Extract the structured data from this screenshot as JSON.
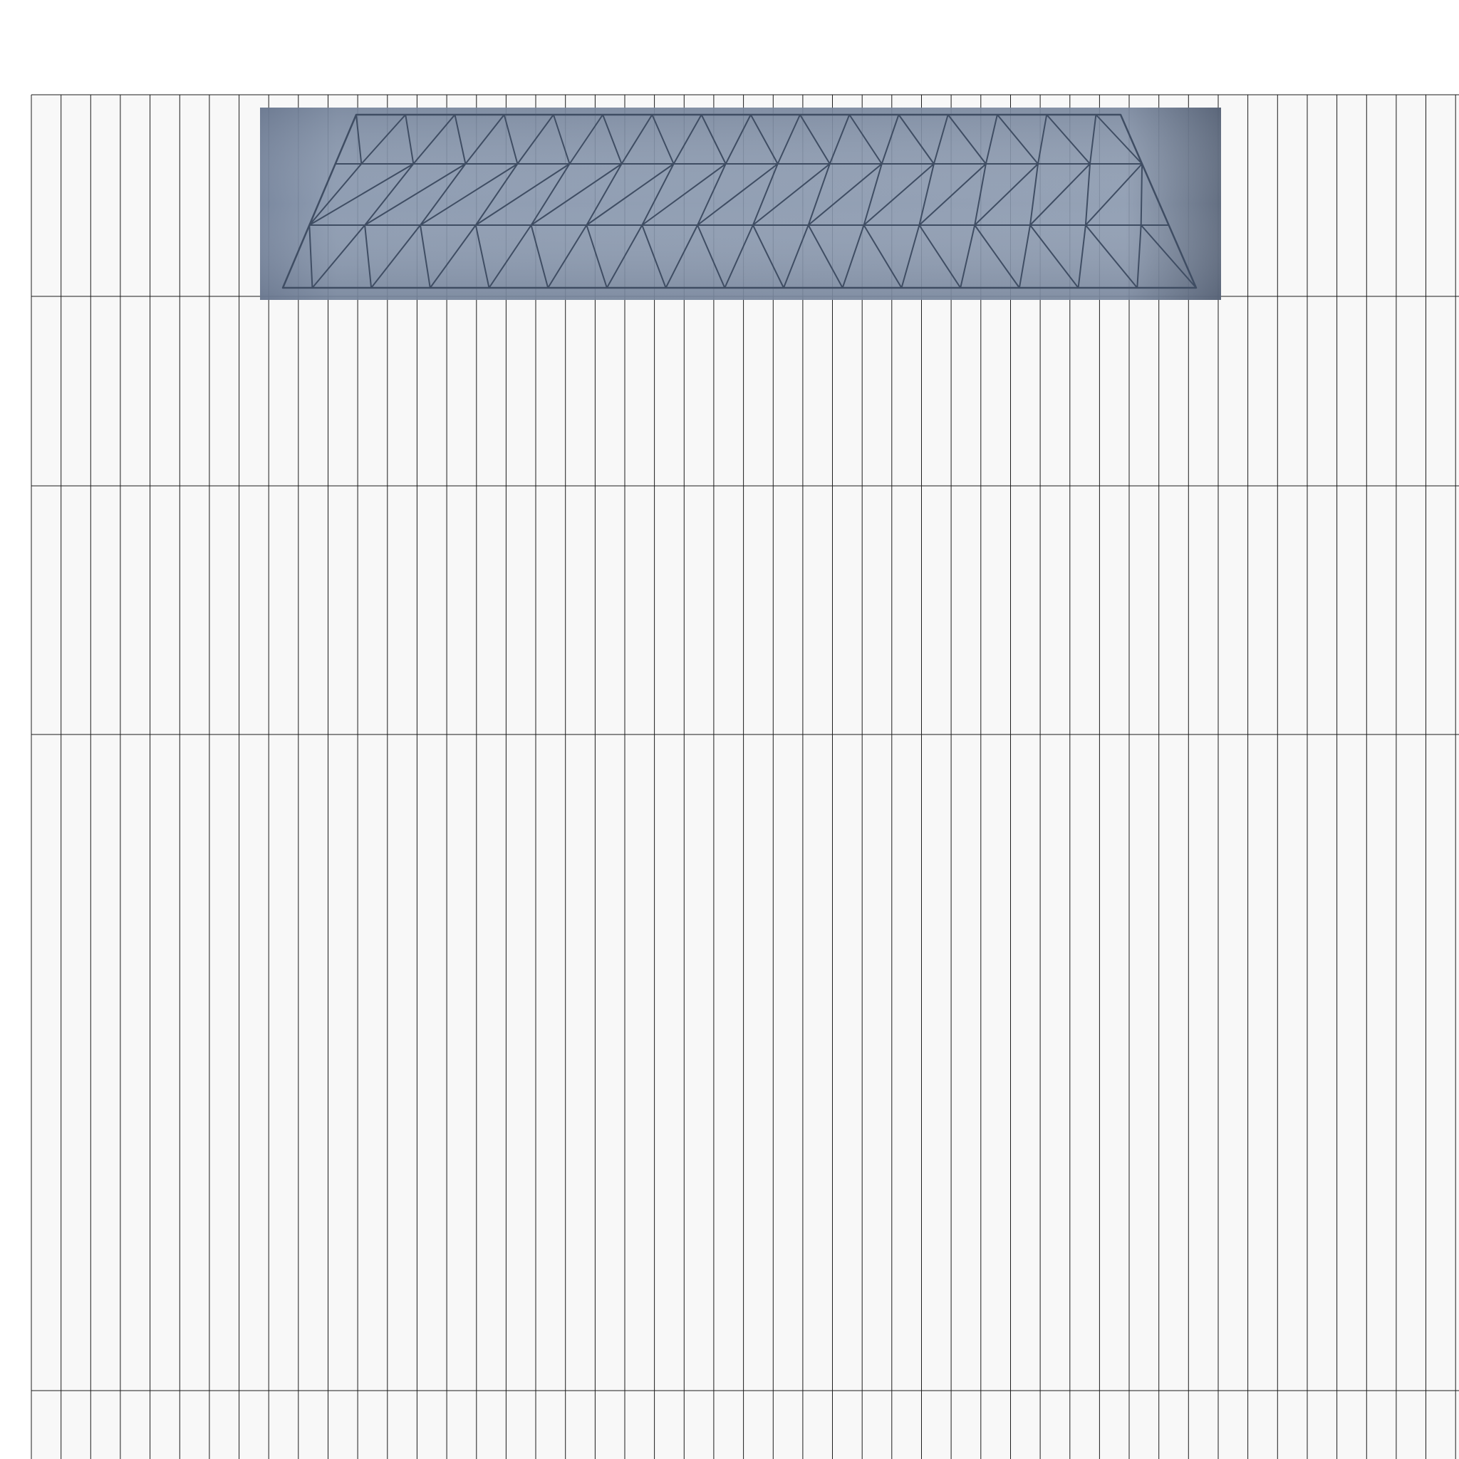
{
  "canvas": {
    "page_background": "#ffffff",
    "grid_background": "#f8f8f8",
    "grid_line_color": "#1c1c1c"
  },
  "preview": {
    "panel_color": "#7d8ba3",
    "panel_shadow_color": "#5f6b80",
    "wireframe_color": "#3f4d63",
    "shape": "trapezoid-triangle-mesh",
    "rows": 3
  }
}
